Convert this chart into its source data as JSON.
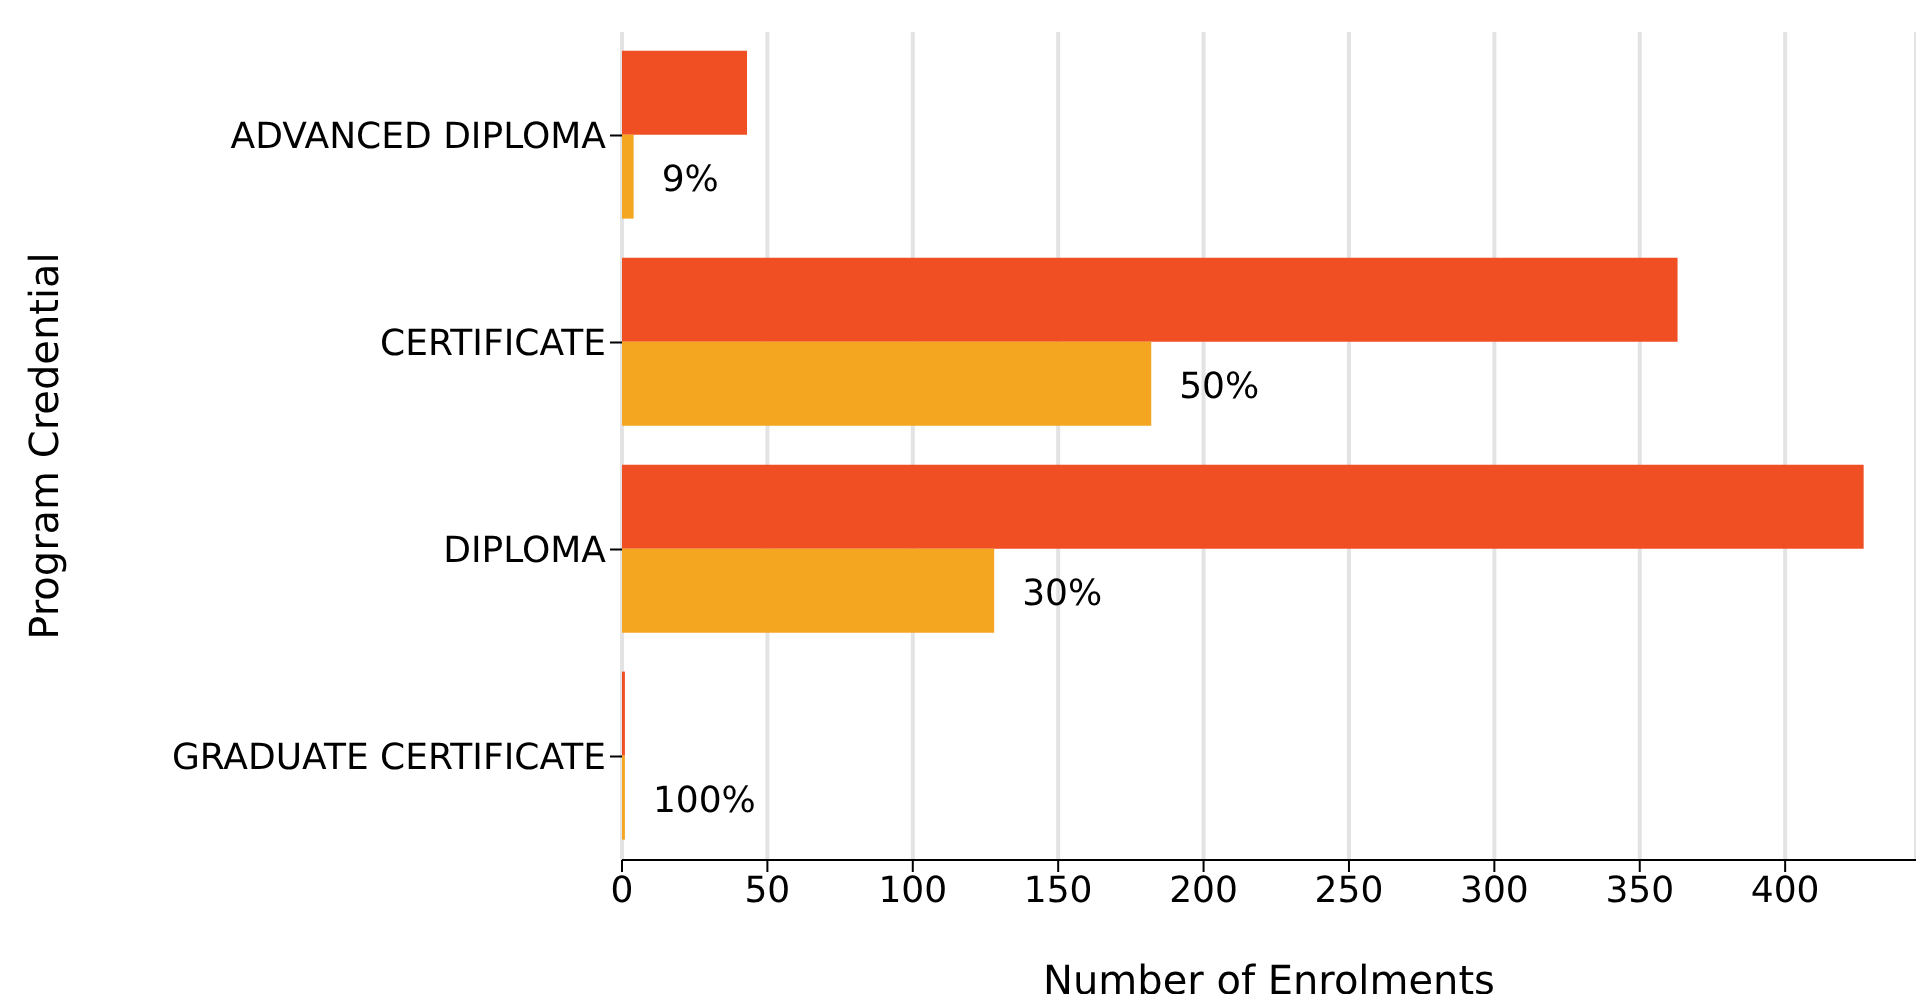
{
  "chart_data": {
    "type": "bar",
    "orientation": "horizontal",
    "xlabel": "Number of Enrolments",
    "ylabel": "Program Credential",
    "categories": [
      "ADVANCED DIPLOMA",
      "CERTIFICATE",
      "DIPLOMA",
      "GRADUATE CERTIFICATE"
    ],
    "series": [
      {
        "color": "#f04e23",
        "values": [
          43,
          363,
          427,
          1
        ]
      },
      {
        "color": "#f4a620",
        "values": [
          4,
          182,
          128,
          1
        ]
      }
    ],
    "annotations": [
      {
        "text": "9%",
        "x": 4,
        "y": "ADVANCED DIPLOMA"
      },
      {
        "text": "50%",
        "x": 182,
        "y": "CERTIFICATE"
      },
      {
        "text": "30%",
        "x": 128,
        "y": "DIPLOMA"
      },
      {
        "text": "100%",
        "x": 1,
        "y": "GRADUATE CERTIFICATE"
      }
    ],
    "xlim": [
      0,
      445
    ],
    "xticks": [
      0,
      50,
      100,
      150,
      200,
      250,
      300,
      350,
      400
    ],
    "grid": "x"
  }
}
